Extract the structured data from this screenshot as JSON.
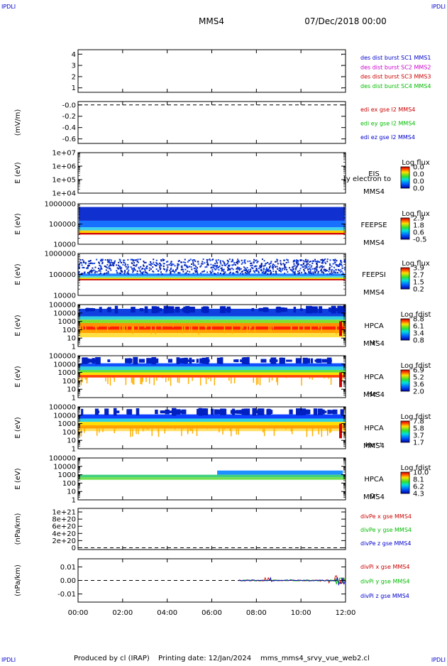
{
  "header": {
    "corner_left": "IPDLI",
    "corner_right": "IPDLI",
    "corner_bottom_left": "IPDLI",
    "corner_bottom_right": "IPDLI",
    "spacecraft": "MMS4",
    "date": "07/Dec/2018 00:00"
  },
  "footer": {
    "produced_by": "Produced by cl (IRAP)",
    "printing_date": "Printing date: 12/Jan/2024",
    "file_name": "mms_mms4_srvy_vue_web2.cl"
  },
  "chart_data": [
    {
      "id": "p1",
      "type": "line",
      "yticks": [
        "1",
        "2",
        "3",
        "4"
      ],
      "ylim": [
        0.6,
        4.4
      ],
      "ylabel": "",
      "legend": [
        {
          "text": "des dist burst SC1 MMS1",
          "color": "#0000cc"
        },
        {
          "text": "des dist burst SC2 MMS2",
          "color": "#cc00cc"
        },
        {
          "text": "des dist burst SC3 MMS3",
          "color": "#cc0000"
        },
        {
          "text": "des dist burst SC4 MMS4",
          "color": "#00bb00"
        }
      ],
      "series": [
        {
          "x": [
            11.95
          ],
          "values": [
            null
          ]
        }
      ]
    },
    {
      "id": "p2",
      "type": "line",
      "yticks": [
        "-0.0",
        "-0.2",
        "-0.4",
        "-0.6"
      ],
      "ylim": [
        -0.68,
        0.06
      ],
      "ylabel": "(mV/m)",
      "reference_line": 0,
      "legend": [
        {
          "text": "edi ex gse l2 MMS4",
          "color": "#cc0000"
        },
        {
          "text": "edi ey gse l2 MMS4",
          "color": "#00bb00"
        },
        {
          "text": "edi ez gse l2 MMS4",
          "color": "#0000cc"
        }
      ]
    },
    {
      "id": "p3",
      "type": "heatmap",
      "yticks": [
        "1e+07",
        "1e+06",
        "1e+05",
        "1e+04"
      ],
      "ylabel": "E (eV)",
      "instrument": "EIS",
      "spacecraft": "MMS4",
      "overlay_text": "ty electron to",
      "colorbar": {
        "title": "Log flux",
        "ticks": [
          "0.0",
          "0.0",
          "0.0",
          "0.0"
        ]
      }
    },
    {
      "id": "p4",
      "type": "heatmap",
      "yticks": [
        "1000000",
        "100000",
        "10000"
      ],
      "ylabel": "E (eV)",
      "instrument": "FEEPSE",
      "spacecraft": "MMS4",
      "colorbar": {
        "title": "Log flux",
        "ticks": [
          "2.9",
          "1.8",
          "0.6",
          "-0.5"
        ]
      }
    },
    {
      "id": "p5",
      "type": "heatmap",
      "yticks": [
        "1000000",
        "100000",
        "10000"
      ],
      "ylabel": "E (eV)",
      "instrument": "FEEPSI",
      "spacecraft": "MMS4",
      "colorbar": {
        "title": "Log flux",
        "ticks": [
          "3.9",
          "2.7",
          "1.5",
          "0.2"
        ]
      }
    },
    {
      "id": "p6",
      "type": "heatmap",
      "yticks": [
        "100000",
        "10000",
        "1000",
        "100",
        "10",
        "1"
      ],
      "ylabel": "E (eV)",
      "instrument": "HPCA",
      "spacecraft": "MMS4",
      "species": "H⁺",
      "colorbar": {
        "title": "Log fdist",
        "ticks": [
          "8.8",
          "6.1",
          "3.4",
          "0.8"
        ]
      }
    },
    {
      "id": "p7",
      "type": "heatmap",
      "yticks": [
        "100000",
        "10000",
        "1000",
        "100",
        "10",
        "1"
      ],
      "ylabel": "E (eV)",
      "instrument": "HPCA",
      "spacecraft": "MMS4",
      "species": "He⁺",
      "colorbar": {
        "title": "Log fdist",
        "ticks": [
          "6.9",
          "5.2",
          "3.6",
          "2.0"
        ]
      }
    },
    {
      "id": "p8",
      "type": "heatmap",
      "yticks": [
        "100000",
        "10000",
        "1000",
        "100",
        "10",
        "1"
      ],
      "ylabel": "E (eV)",
      "instrument": "HPCA",
      "spacecraft": "MMS4",
      "species": "He⁺⁺",
      "colorbar": {
        "title": "Log fdist",
        "ticks": [
          "7.8",
          "5.8",
          "3.7",
          "1.7"
        ]
      }
    },
    {
      "id": "p9",
      "type": "heatmap",
      "yticks": [
        "100000",
        "10000",
        "1000",
        "100",
        "10",
        "1"
      ],
      "ylabel": "E (eV)",
      "instrument": "HPCA",
      "spacecraft": "MMS4",
      "species": "O⁺",
      "colorbar": {
        "title": "Log fdist",
        "ticks": [
          "10.0",
          "8.1",
          "6.2",
          "4.3"
        ]
      }
    },
    {
      "id": "p10",
      "type": "line",
      "yticks": [
        "1e+21",
        "8e+20",
        "6e+20",
        "4e+20",
        "2e+20",
        "0"
      ],
      "ylim": [
        -5e+19,
        1.1e+21
      ],
      "ylabel": "(nPa/km)",
      "reference_line": 0,
      "legend": [
        {
          "text": "divPe x gse MMS4",
          "color": "#cc0000"
        },
        {
          "text": "divPe y gse MMS4",
          "color": "#00bb00"
        },
        {
          "text": "divPe z gse MMS4",
          "color": "#0000cc"
        }
      ]
    },
    {
      "id": "p11",
      "type": "line",
      "yticks": [
        "0.01",
        "0.00",
        "-0.01"
      ],
      "ylim": [
        -0.016,
        0.016
      ],
      "ylabel": "(nPa/km)",
      "reference_line": 0,
      "legend": [
        {
          "text": "divPi x gse MMS4",
          "color": "#cc0000"
        },
        {
          "text": "divPi y gse MMS4",
          "color": "#00bb00"
        },
        {
          "text": "divPi z gse MMS4",
          "color": "#0000cc"
        }
      ]
    }
  ],
  "xaxis": {
    "ticks": [
      "00:00",
      "02:00",
      "04:00",
      "06:00",
      "08:00",
      "10:00",
      "12:00"
    ],
    "xlim": [
      "00:00",
      "12:00"
    ]
  }
}
